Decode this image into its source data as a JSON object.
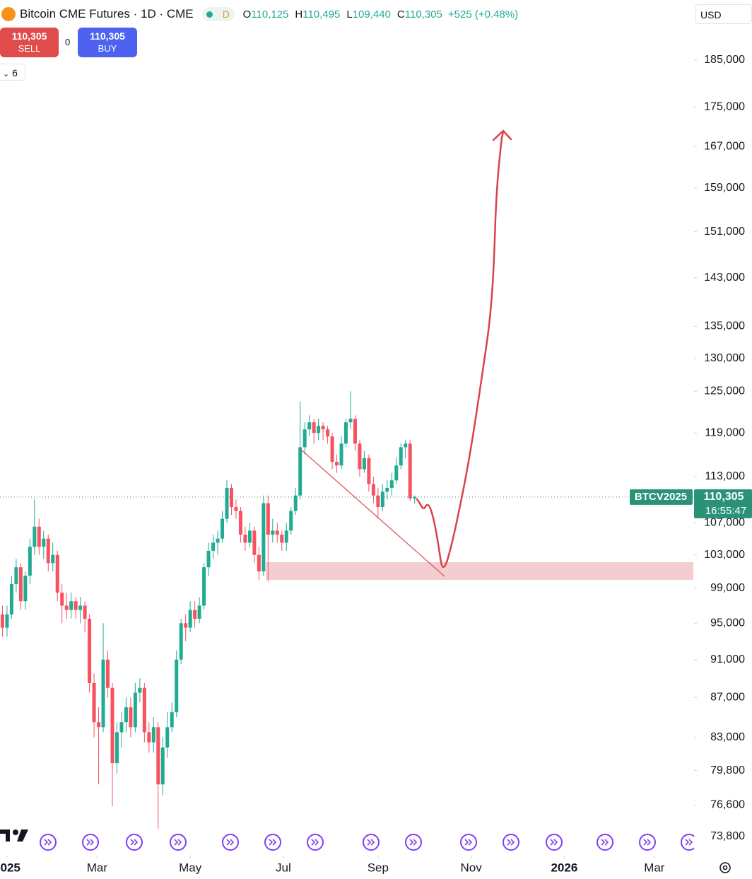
{
  "header": {
    "title": "Bitcoin CME Futures · 1D · CME",
    "interval_badge": "D",
    "ohlc": [
      {
        "label": "O",
        "value": "110,125"
      },
      {
        "label": "H",
        "value": "110,495"
      },
      {
        "label": "L",
        "value": "109,440"
      },
      {
        "label": "C",
        "value": "110,305"
      }
    ],
    "change": "+525 (+0.48%)",
    "currency": "USD"
  },
  "trade_panel": {
    "sell_price": "110,305",
    "sell_label": "SELL",
    "spread": "0",
    "buy_price": "110,305",
    "buy_label": "BUY",
    "indicator_count": "6"
  },
  "chart_data": {
    "type": "candlestick",
    "x": [
      -3,
      0,
      3,
      6,
      9,
      12,
      15,
      18,
      21,
      24,
      27,
      30,
      33,
      36,
      39,
      42,
      45,
      48,
      51,
      54,
      57,
      60,
      63,
      66,
      69,
      72,
      75,
      78,
      81,
      84,
      87,
      90,
      93,
      96,
      99,
      102,
      105,
      108,
      111,
      114,
      117,
      120,
      123,
      126,
      129,
      132,
      135,
      138,
      141,
      144,
      147,
      150,
      153,
      156,
      159,
      162,
      165,
      168,
      171,
      174,
      177,
      180,
      183,
      186,
      189,
      192,
      195,
      198,
      201,
      204,
      207,
      210,
      213,
      216,
      219,
      222,
      225,
      228,
      231,
      234,
      237,
      240,
      243,
      246,
      249,
      252,
      255,
      258,
      261,
      264,
      267
    ],
    "open": [
      96000,
      94500,
      96000,
      99500,
      101500,
      97500,
      100500,
      104000,
      106500,
      104000,
      105000,
      102000,
      103000,
      98500,
      97000,
      96500,
      97500,
      96500,
      97000,
      95500,
      88500,
      84500,
      84000,
      91000,
      88000,
      80500,
      83500,
      84500,
      86000,
      84000,
      87500,
      88000,
      83500,
      82500,
      84000,
      78500,
      82000,
      84000,
      85500,
      91000,
      95000,
      94500,
      96500,
      95500,
      97000,
      101500,
      103500,
      104500,
      105000,
      107500,
      111500,
      109000,
      108500,
      105500,
      104500,
      106000,
      103000,
      101000,
      109500,
      105500,
      106000,
      105500,
      104500,
      106000,
      108500,
      110500,
      117000,
      119500,
      120500,
      119000,
      120000,
      119500,
      118500,
      115000,
      114500,
      117500,
      120500,
      121000,
      117500,
      114000,
      115500,
      112000,
      110500,
      109000,
      111000,
      111500,
      112500,
      114500,
      117000,
      117500,
      110125
    ],
    "high": [
      97000,
      97000,
      100500,
      102500,
      102000,
      101000,
      105000,
      110000,
      107500,
      106000,
      105500,
      104500,
      103500,
      99500,
      98500,
      98500,
      98000,
      98000,
      97500,
      96000,
      89500,
      86000,
      95000,
      92000,
      88500,
      84500,
      85500,
      87000,
      87000,
      88500,
      89000,
      88500,
      84500,
      85000,
      84500,
      83000,
      85500,
      86500,
      92000,
      95500,
      96000,
      97500,
      97500,
      98000,
      102000,
      104500,
      105500,
      106000,
      108500,
      112500,
      112000,
      110000,
      109000,
      106500,
      107000,
      106500,
      104000,
      110500,
      110500,
      107500,
      107000,
      106000,
      107000,
      109000,
      111500,
      123500,
      120500,
      121500,
      121000,
      121000,
      120500,
      120000,
      119000,
      116000,
      118500,
      121000,
      125000,
      121500,
      118000,
      116500,
      116000,
      113000,
      111500,
      112000,
      112500,
      113500,
      115500,
      117500,
      118000,
      118000,
      110495
    ],
    "low": [
      93500,
      93500,
      95500,
      98500,
      96500,
      96500,
      99500,
      103000,
      103000,
      102500,
      101000,
      101000,
      97500,
      95000,
      95500,
      95500,
      95500,
      95000,
      94000,
      87500,
      83000,
      78500,
      83500,
      87000,
      76500,
      79500,
      82000,
      83500,
      83000,
      83500,
      86500,
      82500,
      81500,
      81500,
      74500,
      77500,
      81000,
      83500,
      85000,
      90500,
      93000,
      94000,
      94500,
      95000,
      96500,
      100500,
      102500,
      103000,
      104500,
      107000,
      108000,
      107500,
      104500,
      103500,
      104000,
      102000,
      100000,
      100500,
      99800,
      104500,
      104500,
      103500,
      103500,
      105500,
      108000,
      110000,
      116000,
      118500,
      117500,
      118000,
      118000,
      117500,
      114000,
      113500,
      114000,
      117000,
      119500,
      116500,
      113000,
      113500,
      111000,
      109500,
      107500,
      108500,
      110000,
      110500,
      112000,
      114000,
      115500,
      109800,
      109440
    ],
    "close": [
      94500,
      96000,
      99500,
      101500,
      97500,
      100500,
      104000,
      106500,
      104000,
      105000,
      102000,
      103000,
      98500,
      97000,
      96500,
      97500,
      96500,
      97000,
      95500,
      88500,
      84500,
      84000,
      91000,
      88000,
      80500,
      83500,
      84500,
      86000,
      84000,
      87500,
      88000,
      83500,
      82500,
      84000,
      78500,
      82000,
      84000,
      85500,
      91000,
      95000,
      94500,
      96500,
      95500,
      97000,
      101500,
      103500,
      104500,
      105000,
      107500,
      111500,
      109000,
      108500,
      105500,
      104500,
      106000,
      103000,
      101000,
      109500,
      105500,
      106000,
      105500,
      104500,
      106000,
      108500,
      110500,
      117000,
      119500,
      120500,
      119000,
      120000,
      119500,
      118500,
      115000,
      114500,
      117500,
      120500,
      121000,
      117500,
      114000,
      115500,
      112000,
      110500,
      109000,
      111000,
      111500,
      112500,
      114500,
      117000,
      117500,
      110125,
      110305
    ],
    "up_color": "#22ab94",
    "down_color": "#f7525f",
    "xlim": [
      -4.6,
      450
    ],
    "xticks": [
      {
        "value": 0,
        "label": "2025"
      },
      {
        "value": 59,
        "label": "Mar"
      },
      {
        "value": 120,
        "label": "May"
      },
      {
        "value": 181,
        "label": "Jul"
      },
      {
        "value": 243,
        "label": "Sep"
      },
      {
        "value": 304,
        "label": "Nov"
      },
      {
        "value": 365,
        "label": "2026"
      },
      {
        "value": 424,
        "label": "Mar"
      }
    ],
    "ylim": [
      72150,
      198640
    ],
    "log_scale": true,
    "yticks": [
      {
        "value": 185000,
        "label": "185,000"
      },
      {
        "value": 175000,
        "label": "175,000"
      },
      {
        "value": 167000,
        "label": "167,000"
      },
      {
        "value": 159000,
        "label": "159,000"
      },
      {
        "value": 151000,
        "label": "151,000"
      },
      {
        "value": 143000,
        "label": "143,000"
      },
      {
        "value": 135000,
        "label": "135,000"
      },
      {
        "value": 130000,
        "label": "130,000"
      },
      {
        "value": 125000,
        "label": "125,000"
      },
      {
        "value": 119000,
        "label": "119,000"
      },
      {
        "value": 113000,
        "label": "113,000"
      },
      {
        "value": 107000,
        "label": "107,000"
      },
      {
        "value": 103000,
        "label": "103,000"
      },
      {
        "value": 99000,
        "label": "99,000"
      },
      {
        "value": 95000,
        "label": "95,000"
      },
      {
        "value": 91000,
        "label": "91,000"
      },
      {
        "value": 87000,
        "label": "87,000"
      },
      {
        "value": 83000,
        "label": "83,000"
      },
      {
        "value": 79800,
        "label": "79,800"
      },
      {
        "value": 76600,
        "label": "76,600"
      },
      {
        "value": 73800,
        "label": "73,800"
      }
    ],
    "symbol_label": "BTCV2025",
    "last_price_label": "110,305",
    "countdown": "16:55:47",
    "price_label_color": "#2a9276"
  }
}
